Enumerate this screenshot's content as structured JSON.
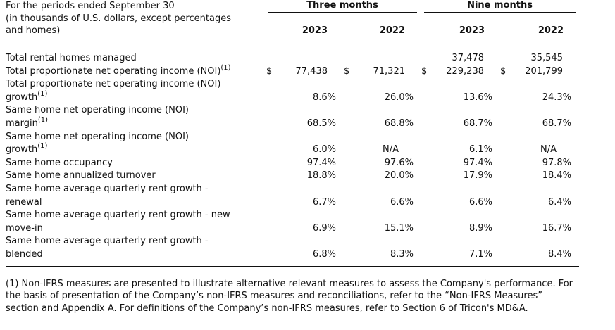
{
  "header": {
    "caption_lines": [
      "For the periods ended September 30",
      "(in thousands of U.S. dollars, except percentages",
      "and homes)"
    ],
    "groups": [
      "Three months",
      "Nine months"
    ],
    "years": [
      "2023",
      "2022",
      "2023",
      "2022"
    ]
  },
  "rows": [
    {
      "label": [
        "Total rental homes managed"
      ],
      "sup": "",
      "values": [
        "",
        "",
        "37,478",
        "35,545"
      ],
      "dollar": false,
      "kind": "num"
    },
    {
      "label": [
        "Total proportionate net operating income (NOI)"
      ],
      "sup": "(1)",
      "values": [
        "77,438",
        "71,321",
        "229,238",
        "201,799"
      ],
      "dollar": true,
      "currency": "$",
      "kind": "num"
    },
    {
      "label": [
        "Total proportionate net operating income (NOI)",
        "growth"
      ],
      "sup": "(1)",
      "values": [
        "8.6%",
        "26.0%",
        "13.6%",
        "24.3%"
      ],
      "kind": "pct"
    },
    {
      "label": [
        "Same home net operating income (NOI)",
        "margin"
      ],
      "sup": "(1)",
      "values": [
        "68.5%",
        "68.8%",
        "68.7%",
        "68.7%"
      ],
      "kind": "pct"
    },
    {
      "label": [
        "Same home net operating income (NOI)",
        "growth"
      ],
      "sup": "(1)",
      "values": [
        "6.0%",
        "N/A",
        "6.1%",
        "N/A"
      ],
      "kind": "pct"
    },
    {
      "label": [
        "Same home occupancy"
      ],
      "sup": "",
      "values": [
        "97.4%",
        "97.6%",
        "97.4%",
        "97.8%"
      ],
      "kind": "pct"
    },
    {
      "label": [
        "Same home annualized turnover"
      ],
      "sup": "",
      "values": [
        "18.8%",
        "20.0%",
        "17.9%",
        "18.4%"
      ],
      "kind": "pct"
    },
    {
      "label": [
        "Same home average quarterly rent growth -",
        "renewal"
      ],
      "sup": "",
      "values": [
        "6.7%",
        "6.6%",
        "6.6%",
        "6.4%"
      ],
      "kind": "pct"
    },
    {
      "label": [
        "Same home average quarterly rent growth - new",
        "move-in"
      ],
      "sup": "",
      "values": [
        "6.9%",
        "15.1%",
        "8.9%",
        "16.7%"
      ],
      "kind": "pct"
    },
    {
      "label": [
        "Same home average quarterly rent growth -",
        "blended"
      ],
      "sup": "",
      "values": [
        "6.8%",
        "8.3%",
        "7.1%",
        "8.4%"
      ],
      "kind": "pct"
    }
  ],
  "footnote": "(1) Non-IFRS measures are presented to illustrate alternative relevant measures to assess the Company's performance. For the basis of presentation of the Company’s non-IFRS measures and reconciliations, refer to the “Non-IFRS Measures” section and Appendix A. For definitions of the Company’s non-IFRS measures, refer to Section 6 of Tricon's MD&A."
}
